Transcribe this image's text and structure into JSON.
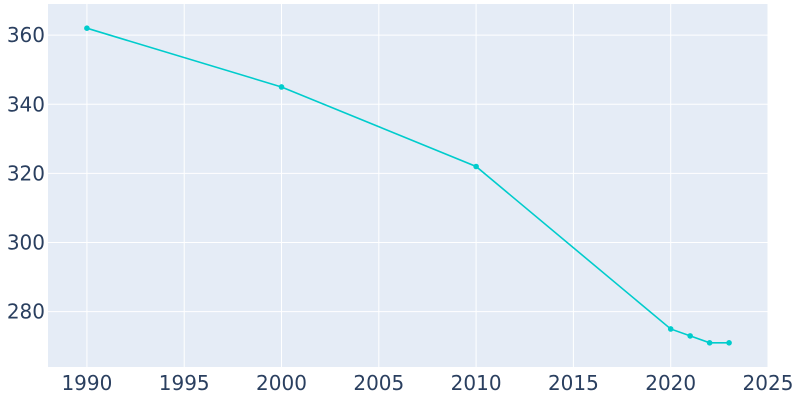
{
  "chart_data": {
    "type": "line",
    "title": "",
    "xlabel": "",
    "ylabel": "",
    "xlim": [
      1988,
      2025
    ],
    "ylim": [
      264,
      369
    ],
    "x_ticks": [
      1990,
      1995,
      2000,
      2005,
      2010,
      2015,
      2020,
      2025
    ],
    "y_ticks": [
      280,
      300,
      320,
      340,
      360
    ],
    "grid": true,
    "legend": "none",
    "colors": {
      "plot_background": "#e5ecf6",
      "grid": "#ffffff",
      "line": "#00cccc",
      "tick_text": "#2a3f5f"
    },
    "series": [
      {
        "x": [
          1990,
          2000,
          2010,
          2020,
          2021,
          2022,
          2023
        ],
        "values": [
          362,
          345,
          322,
          275,
          273,
          271,
          271
        ]
      }
    ]
  }
}
